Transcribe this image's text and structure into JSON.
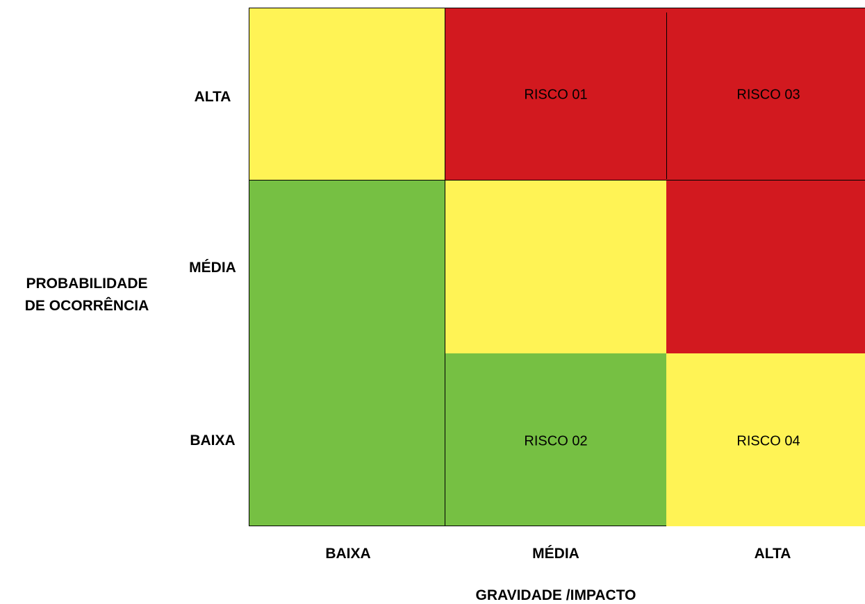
{
  "colors": {
    "low": "#76C043",
    "medium": "#FFF355",
    "high": "#D2191F",
    "border": "#000000"
  },
  "y_axis": {
    "title_line1": "PROBABILIDADE",
    "title_line2": "DE OCORRÊNCIA",
    "levels": [
      "ALTA",
      "MÉDIA",
      "BAIXA"
    ]
  },
  "x_axis": {
    "title": "GRAVIDADE /IMPACTO",
    "levels": [
      "BAIXA",
      "MÉDIA",
      "ALTA"
    ]
  },
  "regions": [
    {
      "name": "yellow-top-left",
      "color": "medium"
    },
    {
      "name": "green-left-column",
      "color": "low"
    },
    {
      "name": "red-top-middle",
      "color": "high"
    },
    {
      "name": "red-top-right",
      "color": "high"
    },
    {
      "name": "yellow-center",
      "color": "medium"
    },
    {
      "name": "red-middle-right",
      "color": "high"
    },
    {
      "name": "green-bottom-middle",
      "color": "low"
    },
    {
      "name": "yellow-bottom-right",
      "color": "medium"
    }
  ],
  "risks": [
    {
      "label": "RISCO 01",
      "probability": "ALTA",
      "impact": "MÉDIA"
    },
    {
      "label": "RISCO 03",
      "probability": "ALTA",
      "impact": "ALTA"
    },
    {
      "label": "RISCO 02",
      "probability": "BAIXA",
      "impact": "MÉDIA"
    },
    {
      "label": "RISCO 04",
      "probability": "BAIXA",
      "impact": "ALTA"
    }
  ]
}
